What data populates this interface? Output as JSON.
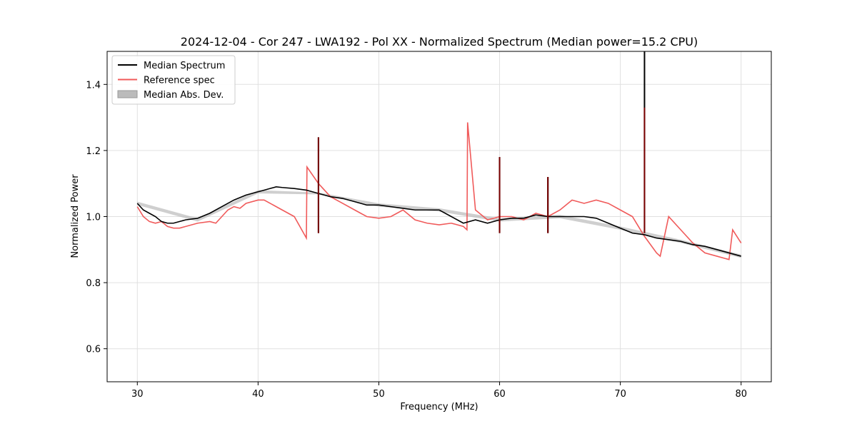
{
  "chart_data": {
    "type": "line",
    "title": "2024-12-04 - Cor 247 - LWA192 - Pol XX - Normalized Spectrum (Median power=15.2 CPU)",
    "xlabel": "Frequency (MHz)",
    "ylabel": "Normalized Power",
    "xlim": [
      27.5,
      82.5
    ],
    "ylim": [
      0.5,
      1.5
    ],
    "xticks": [
      30,
      40,
      50,
      60,
      70,
      80
    ],
    "yticks": [
      0.6,
      0.8,
      1.0,
      1.2,
      1.4
    ],
    "xtick_labels": [
      "30",
      "40",
      "50",
      "60",
      "70",
      "80"
    ],
    "ytick_labels": [
      "0.6",
      "0.8",
      "1.0",
      "1.2",
      "1.4"
    ],
    "grid": true,
    "legend_position": "top-left",
    "colors": {
      "median": "#000000",
      "reference": "#f05a5a",
      "mad": "#bbbbbb",
      "grid": "#e0e0e0"
    },
    "series": [
      {
        "name": "Median Spectrum",
        "style": "line",
        "x": [
          30,
          30.5,
          31,
          31.5,
          32,
          32.5,
          33,
          34,
          35,
          36,
          37,
          38,
          39,
          40,
          40.5,
          41,
          41.5,
          42,
          43,
          44,
          44.5,
          45,
          45.5,
          46,
          47,
          48,
          49,
          50,
          51,
          52,
          53,
          54,
          55,
          56,
          57,
          58,
          59,
          60,
          61,
          62,
          63,
          64,
          65,
          66,
          67,
          68,
          69,
          70,
          71,
          72,
          73,
          74,
          75,
          76,
          77,
          78,
          79,
          80
        ],
        "y": [
          1.04,
          1.02,
          1.01,
          1.0,
          0.985,
          0.98,
          0.98,
          0.99,
          0.995,
          1.01,
          1.03,
          1.05,
          1.065,
          1.075,
          1.08,
          1.085,
          1.09,
          1.088,
          1.085,
          1.08,
          1.075,
          1.07,
          1.065,
          1.06,
          1.055,
          1.045,
          1.035,
          1.035,
          1.03,
          1.025,
          1.02,
          1.02,
          1.02,
          1.0,
          0.98,
          0.99,
          0.98,
          0.99,
          0.995,
          0.995,
          1.005,
          1.0,
          1.0,
          1.0,
          1.0,
          0.995,
          0.98,
          0.965,
          0.95,
          0.945,
          0.935,
          0.93,
          0.925,
          0.915,
          0.91,
          0.9,
          0.89,
          0.88
        ]
      },
      {
        "name": "Reference spec",
        "style": "line",
        "x": [
          30,
          30.5,
          31,
          31.5,
          32,
          32.5,
          33,
          33.5,
          34,
          35,
          36,
          36.5,
          37,
          37.5,
          38,
          38.5,
          39,
          40,
          40.5,
          41,
          42,
          43,
          44,
          44.05,
          45,
          46,
          47,
          48,
          48.5,
          49,
          50,
          51,
          52,
          53,
          54,
          55,
          56,
          57,
          57.3,
          57.35,
          58,
          59,
          60,
          61,
          62,
          63,
          64,
          65,
          66,
          67,
          68,
          69,
          70,
          71,
          72,
          73,
          73.3,
          74,
          75,
          76,
          77,
          78,
          79,
          79.3,
          80
        ],
        "y": [
          1.03,
          1.0,
          0.985,
          0.98,
          0.985,
          0.97,
          0.965,
          0.965,
          0.97,
          0.98,
          0.985,
          0.98,
          1.0,
          1.02,
          1.03,
          1.025,
          1.04,
          1.05,
          1.05,
          1.04,
          1.02,
          1.0,
          0.935,
          1.15,
          1.1,
          1.06,
          1.04,
          1.02,
          1.01,
          1.0,
          0.995,
          1.0,
          1.02,
          0.99,
          0.98,
          0.975,
          0.98,
          0.97,
          0.96,
          1.285,
          1.02,
          0.99,
          1.0,
          1.0,
          0.99,
          1.01,
          1.0,
          1.02,
          1.05,
          1.04,
          1.05,
          1.04,
          1.02,
          1.0,
          0.94,
          0.89,
          0.88,
          1.0,
          0.96,
          0.92,
          0.89,
          0.88,
          0.87,
          0.96,
          0.92
        ]
      },
      {
        "name": "Median Abs. Dev.",
        "style": "band",
        "x": [
          30,
          35,
          40,
          45,
          50,
          55,
          60,
          65,
          70,
          75,
          80
        ],
        "lower": [
          1.035,
          0.985,
          1.07,
          1.067,
          1.03,
          1.015,
          0.985,
          0.995,
          0.96,
          0.92,
          0.875
        ],
        "upper": [
          1.045,
          0.995,
          1.08,
          1.073,
          1.04,
          1.025,
          0.995,
          1.005,
          0.97,
          0.93,
          0.885
        ]
      }
    ],
    "spikes": [
      {
        "x": 45.0,
        "y": 1.24
      },
      {
        "x": 60.0,
        "y": 1.18
      },
      {
        "x": 64.0,
        "y": 1.12
      },
      {
        "x": 72.0,
        "y": 1.5
      }
    ]
  }
}
